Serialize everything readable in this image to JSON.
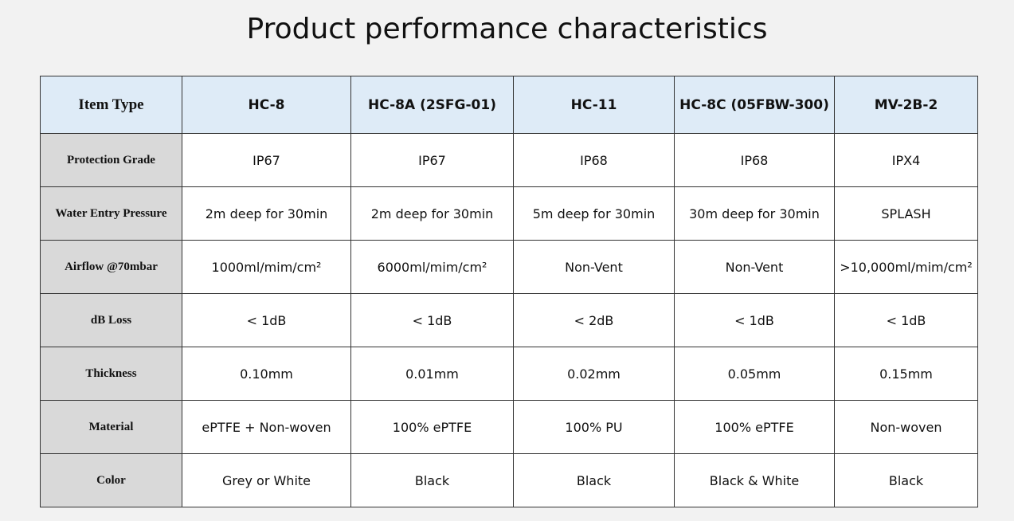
{
  "title": "Product performance characteristics",
  "table": {
    "header": [
      "Item Type",
      "HC-8",
      "HC-8A (2SFG-01)",
      "HC-11",
      "HC-8C (05FBW-300)",
      "MV-2B-2"
    ],
    "rows": [
      [
        "Protection Grade",
        "IP67",
        "IP67",
        "IP68",
        "IP68",
        "IPX4"
      ],
      [
        "Water Entry Pressure",
        "2m deep for 30min",
        "2m deep for 30min",
        "5m deep for 30min",
        "30m deep for 30min",
        "SPLASH"
      ],
      [
        "Airflow @70mbar",
        "1000ml/mim/cm²",
        "6000ml/mim/cm²",
        "Non-Vent",
        "Non-Vent",
        ">10,000ml/mim/cm²"
      ],
      [
        "dB Loss",
        "< 1dB",
        "< 1dB",
        "< 2dB",
        "< 1dB",
        "< 1dB"
      ],
      [
        "Thickness",
        "0.10mm",
        "0.01mm",
        "0.02mm",
        "0.05mm",
        "0.15mm"
      ],
      [
        "Material",
        "ePTFE + Non-woven",
        "100% ePTFE",
        "100% PU",
        "100% ePTFE",
        "Non-woven"
      ],
      [
        "Color",
        "Grey or White",
        "Black",
        "Black",
        "Black & White",
        "Black"
      ]
    ]
  }
}
